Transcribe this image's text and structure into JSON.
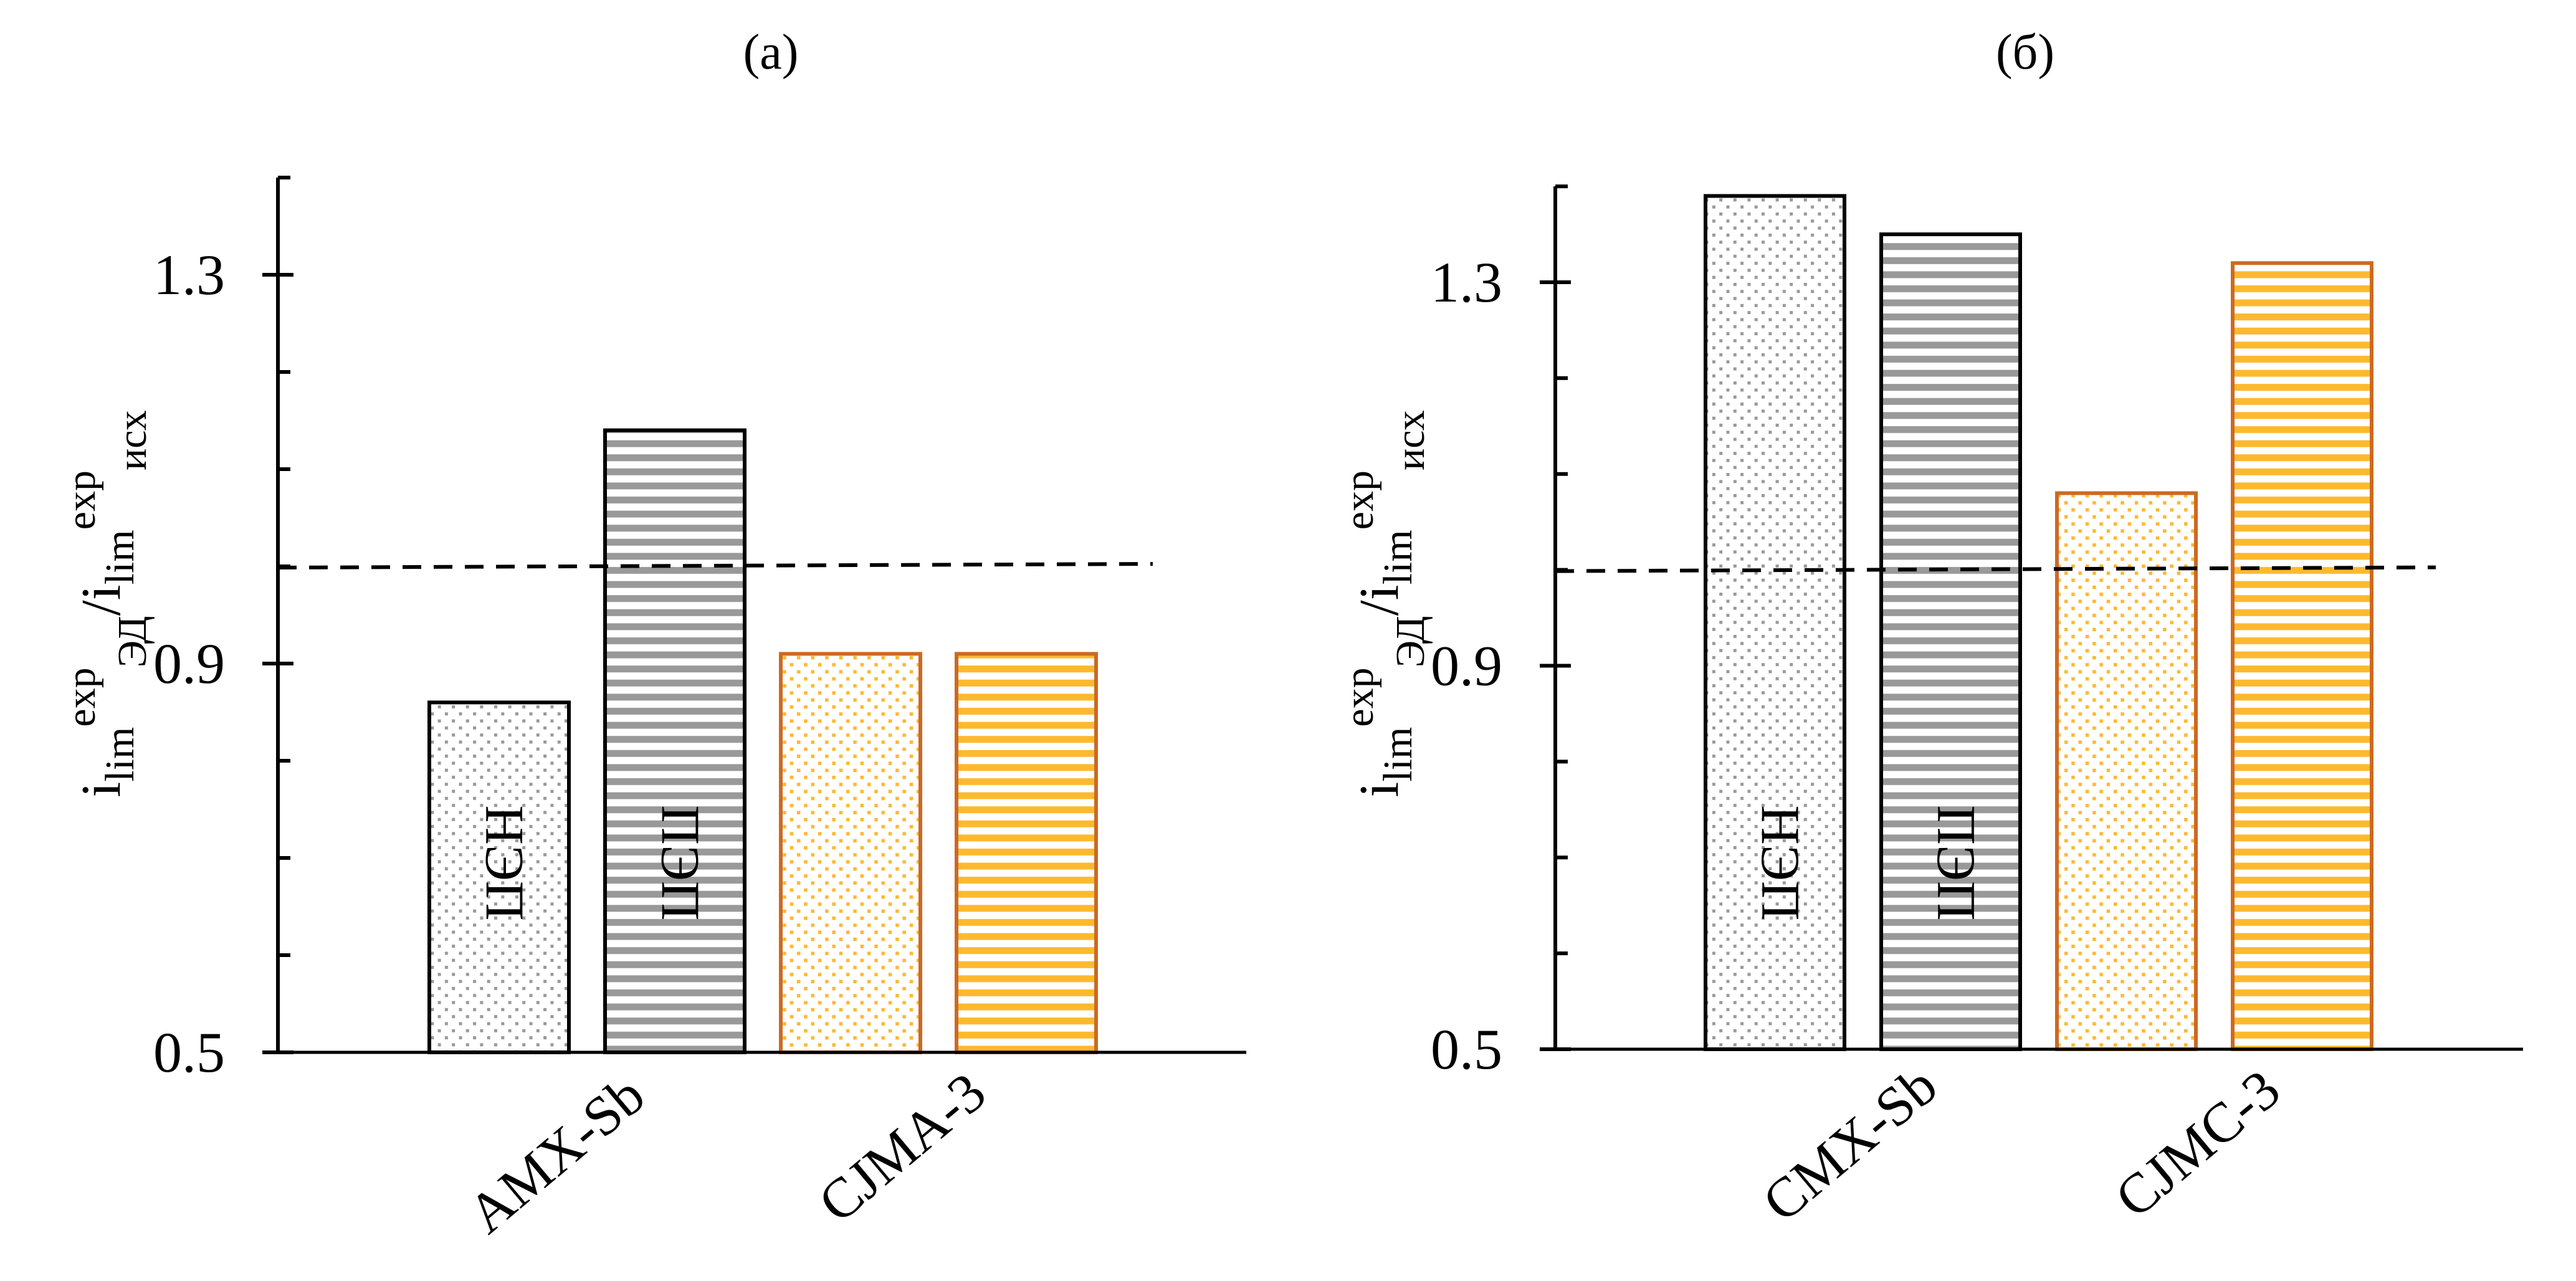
{
  "colors": {
    "black_edge": "#000000",
    "gray_fill": "#999999",
    "orange_edge": "#cc6a22",
    "yellow_fill": "#fdb92e"
  },
  "chart_data": [
    {
      "type": "bar",
      "title": "(a)",
      "ylabel": {
        "base1": "i",
        "sub1": "lim",
        "sup1": "exp",
        "sub1b": "ЭД",
        "slash": "/",
        "base2": "i",
        "sub2": "lim",
        "sup2": "exp",
        "sub2b": "исх"
      },
      "ylim": [
        0.5,
        1.4
      ],
      "yticks_labeled": [
        "0.5",
        "0.9",
        "1.3"
      ],
      "ytick_values": [
        0.5,
        0.9,
        1.3
      ],
      "minor_tick_step": 0.1,
      "categories": [
        "AMX-Sb",
        "CJMA-3"
      ],
      "reference_line": 1.0,
      "bars": [
        {
          "category": "AMX-Sb",
          "value": 0.86,
          "label": "НЭП",
          "pattern": "dots",
          "color": "gray"
        },
        {
          "category": "AMX-Sb",
          "value": 1.14,
          "label": "ПЭП",
          "pattern": "stripes",
          "color": "gray"
        },
        {
          "category": "CJMA-3",
          "value": 0.91,
          "label": "",
          "pattern": "dots",
          "color": "orange"
        },
        {
          "category": "CJMA-3",
          "value": 0.91,
          "label": "",
          "pattern": "stripes",
          "color": "orange"
        }
      ]
    },
    {
      "type": "bar",
      "title": "(б)",
      "ylabel": {
        "base1": "i",
        "sub1": "lim",
        "sup1": "exp",
        "sub1b": "ЭД",
        "slash": "/",
        "base2": "i",
        "sub2": "lim",
        "sup2": "exp",
        "sub2b": "исх"
      },
      "ylim": [
        0.5,
        1.4
      ],
      "yticks_labeled": [
        "0.5",
        "0.9",
        "1.3"
      ],
      "ytick_values": [
        0.5,
        0.9,
        1.3
      ],
      "minor_tick_step": 0.1,
      "categories": [
        "CMX-Sb",
        "CJMC-3"
      ],
      "reference_line": 1.0,
      "bars": [
        {
          "category": "CMX-Sb",
          "value": 1.39,
          "label": "НЭП",
          "pattern": "dots",
          "color": "gray"
        },
        {
          "category": "CMX-Sb",
          "value": 1.35,
          "label": "ПЭП",
          "pattern": "stripes",
          "color": "gray"
        },
        {
          "category": "CJMC-3",
          "value": 1.08,
          "label": "",
          "pattern": "dots",
          "color": "orange"
        },
        {
          "category": "CJMC-3",
          "value": 1.32,
          "label": "",
          "pattern": "stripes",
          "color": "orange"
        }
      ]
    }
  ]
}
